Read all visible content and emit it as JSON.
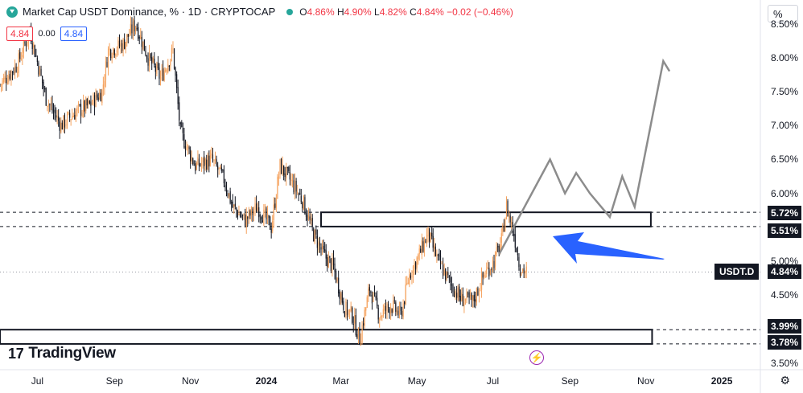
{
  "header": {
    "title": "Market Cap USDT Dominance, % · 1D · CRYPTOCAP",
    "open_label": "O",
    "open": "4.86%",
    "high_label": "H",
    "high": "4.90%",
    "low_label": "L",
    "low": "4.82%",
    "close_label": "C",
    "close": "4.84%",
    "change": "−0.02 (−0.46%)"
  },
  "price_boxes": {
    "sell": "4.84",
    "spread": "0.00",
    "buy": "4.84"
  },
  "scale_mode": "%",
  "brand": {
    "name": "TradingView"
  },
  "badges": {
    "symbol": "USDT.D",
    "current": "4.84%",
    "res_top": "5.72%",
    "res_bottom": "5.51%",
    "sup_top": "3.99%",
    "sup_bottom": "3.78%"
  },
  "colors": {
    "up": "#26a69a",
    "down": "#f23645",
    "candle_up": "#f5a25d",
    "candle_down": "#131722",
    "arrow_blue": "#2962ff",
    "projection": "#8c8c8c"
  },
  "chart_data": {
    "type": "candlestick",
    "title": "Market Cap USDT Dominance, % · 1D · CRYPTOCAP",
    "ylim": [
      3.4,
      8.85
    ],
    "x_ticks": [
      "Jul",
      "Sep",
      "Nov",
      "2024",
      "Mar",
      "May",
      "Jul",
      "Sep",
      "Nov",
      "2025"
    ],
    "y_ticks": [
      "8.50%",
      "8.00%",
      "7.50%",
      "7.00%",
      "6.50%",
      "6.00%",
      "5.00%",
      "4.50%",
      "3.50%"
    ],
    "x_domain": [
      "2023-06-01",
      "2025-02-01"
    ],
    "close_path": [
      [
        "2023-06-01",
        7.6
      ],
      [
        "2023-06-15",
        7.9
      ],
      [
        "2023-06-25",
        8.4
      ],
      [
        "2023-07-08",
        7.4
      ],
      [
        "2023-07-20",
        7.0
      ],
      [
        "2023-08-01",
        7.2
      ],
      [
        "2023-08-12",
        7.3
      ],
      [
        "2023-08-22",
        7.5
      ],
      [
        "2023-08-27",
        8.1
      ],
      [
        "2023-09-08",
        8.2
      ],
      [
        "2023-09-18",
        8.5
      ],
      [
        "2023-09-28",
        8.0
      ],
      [
        "2023-10-08",
        7.7
      ],
      [
        "2023-10-18",
        8.1
      ],
      [
        "2023-10-24",
        6.9
      ],
      [
        "2023-11-05",
        6.4
      ],
      [
        "2023-11-18",
        6.5
      ],
      [
        "2023-11-28",
        6.2
      ],
      [
        "2023-12-05",
        5.8
      ],
      [
        "2023-12-15",
        5.6
      ],
      [
        "2023-12-25",
        5.8
      ],
      [
        "2024-01-05",
        5.5
      ],
      [
        "2024-01-12",
        6.4
      ],
      [
        "2024-01-20",
        6.2
      ],
      [
        "2024-01-30",
        5.9
      ],
      [
        "2024-02-08",
        5.4
      ],
      [
        "2024-02-16",
        5.1
      ],
      [
        "2024-02-24",
        4.9
      ],
      [
        "2024-03-04",
        4.3
      ],
      [
        "2024-03-10",
        4.2
      ],
      [
        "2024-03-16",
        3.85
      ],
      [
        "2024-03-24",
        4.6
      ],
      [
        "2024-04-01",
        4.2
      ],
      [
        "2024-04-10",
        4.35
      ],
      [
        "2024-04-18",
        4.2
      ],
      [
        "2024-04-25",
        4.8
      ],
      [
        "2024-05-03",
        5.1
      ],
      [
        "2024-05-10",
        5.4
      ],
      [
        "2024-05-18",
        5.0
      ],
      [
        "2024-05-27",
        4.7
      ],
      [
        "2024-06-05",
        4.45
      ],
      [
        "2024-06-15",
        4.4
      ],
      [
        "2024-06-24",
        4.8
      ],
      [
        "2024-07-02",
        5.0
      ],
      [
        "2024-07-08",
        5.3
      ],
      [
        "2024-07-12",
        5.8
      ],
      [
        "2024-07-18",
        5.4
      ],
      [
        "2024-07-23",
        4.9
      ],
      [
        "2024-07-28",
        4.84
      ]
    ],
    "projection_path": [
      [
        "2024-07-06",
        5.1
      ],
      [
        "2024-08-16",
        6.5
      ],
      [
        "2024-08-28",
        6.0
      ],
      [
        "2024-09-06",
        6.3
      ],
      [
        "2024-09-17",
        6.0
      ],
      [
        "2024-10-03",
        5.65
      ],
      [
        "2024-10-13",
        6.25
      ],
      [
        "2024-10-23",
        5.8
      ],
      [
        "2024-11-15",
        7.95
      ],
      [
        "2024-11-20",
        7.8
      ]
    ],
    "zones": [
      {
        "name": "resistance",
        "low": 5.51,
        "high": 5.72,
        "from": "2024-02-14",
        "to": "2024-11-05"
      },
      {
        "name": "support",
        "low": 3.78,
        "high": 3.99,
        "from": "2023-06-01",
        "to": "2024-11-06"
      }
    ],
    "dashed_levels": [
      5.72,
      5.51,
      3.99,
      3.78
    ],
    "dotted_level": 4.84
  }
}
